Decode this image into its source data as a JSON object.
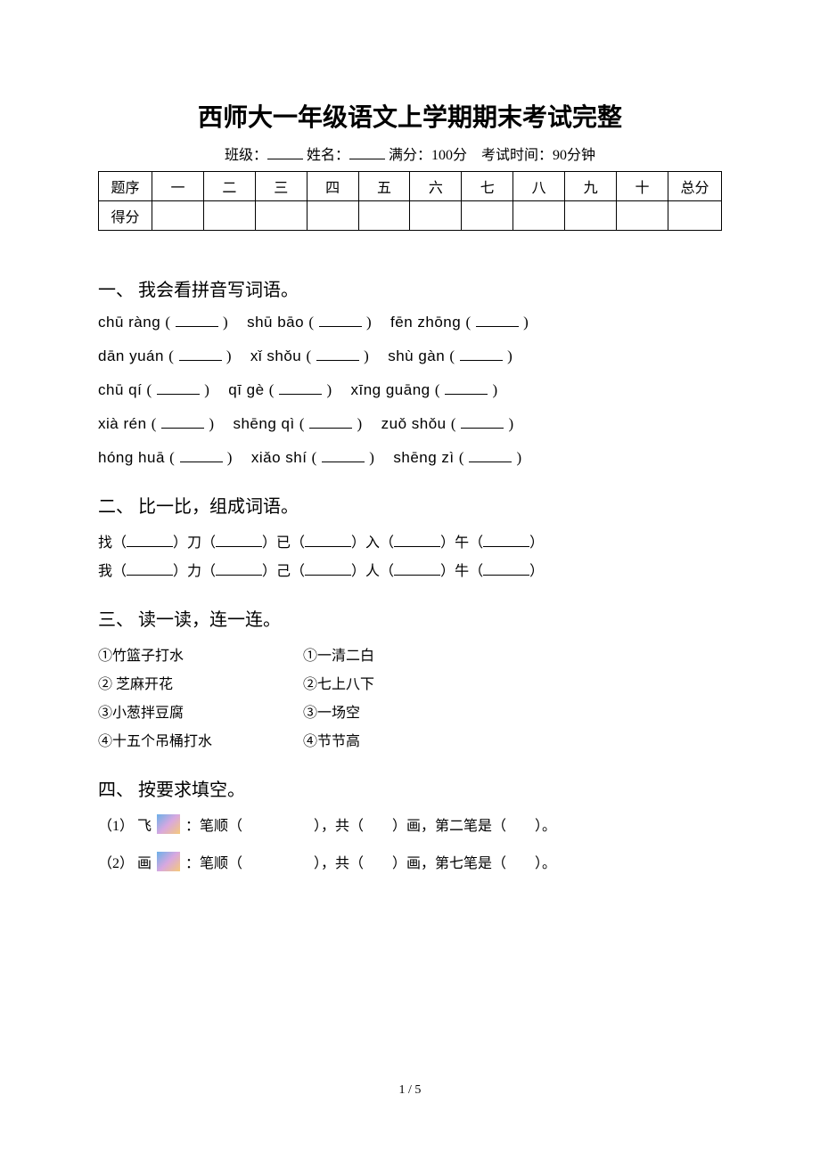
{
  "title": "西师大一年级语文上学期期末考试完整",
  "subtitle": {
    "class_label": "班级：",
    "name_label": "姓名：",
    "full_marks": "满分：100分",
    "exam_time": "考试时间：90分钟"
  },
  "score_table": {
    "header_label": "题序",
    "score_label": "得分",
    "columns": [
      "一",
      "二",
      "三",
      "四",
      "五",
      "六",
      "七",
      "八",
      "九",
      "十",
      "总分"
    ]
  },
  "sections": {
    "s1": {
      "heading": "一、 我会看拼音写词语。",
      "rows": [
        [
          "chū ràng",
          "shū bāo",
          "fēn zhōng"
        ],
        [
          "dān yuán",
          "xǐ shǒu",
          "shù gàn"
        ],
        [
          "chū qí",
          "qī gè",
          "xīng guāng"
        ],
        [
          "xià rén",
          "shēng qì",
          "zuǒ shǒu"
        ],
        [
          "hóng huā",
          "xiǎo shí",
          "shēng zì"
        ]
      ]
    },
    "s2": {
      "heading": "二、 比一比，组成词语。",
      "rows": [
        [
          "找",
          "刀",
          "已",
          "入",
          "午"
        ],
        [
          "我",
          "力",
          "己",
          "人",
          "牛"
        ]
      ]
    },
    "s3": {
      "heading": "三、 读一读，连一连。",
      "pairs": [
        {
          "left": "①竹篮子打水",
          "right": "①一清二白"
        },
        {
          "left": "② 芝麻开花",
          "right": "②七上八下"
        },
        {
          "left": "③小葱拌豆腐",
          "right": "③一场空"
        },
        {
          "left": "④十五个吊桶打水",
          "right": "④节节高"
        }
      ]
    },
    "s4": {
      "heading": "四、 按要求填空。",
      "items": [
        {
          "num": "（1）",
          "char": "飞",
          "tail": "：笔顺（　　　　　），共（　　）画，第二笔是（　　）。"
        },
        {
          "num": "（2）",
          "char": "画",
          "tail": "：笔顺（　　　　　），共（　　）画，第七笔是（　　）。"
        }
      ]
    }
  },
  "footer": "1 / 5",
  "colors": {
    "text": "#000000",
    "background": "#ffffff",
    "border": "#000000"
  },
  "typography": {
    "title_fontsize": 28,
    "body_fontsize": 16,
    "section_fontsize": 20
  }
}
